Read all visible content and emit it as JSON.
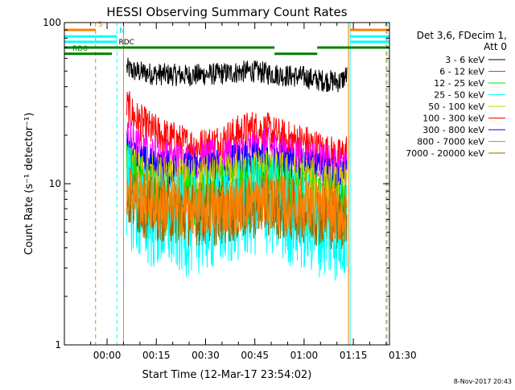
{
  "chart_data": {
    "type": "line",
    "title": "HESSI Observing Summary Count Rates",
    "xlabel": "Start Time (12-Mar-17 23:54:02)",
    "ylabel": "Count Rate (s⁻¹ detector⁻¹)",
    "yscale": "log",
    "ylim": [
      1,
      100
    ],
    "xlim_minutes": [
      -7,
      92
    ],
    "x_ticks": [
      {
        "label": "00:00",
        "minute": 6
      },
      {
        "label": "00:15",
        "minute": 21
      },
      {
        "label": "00:30",
        "minute": 36
      },
      {
        "label": "00:45",
        "minute": 51
      },
      {
        "label": "01:00",
        "minute": 66
      },
      {
        "label": "01:15",
        "minute": 81
      },
      {
        "label": "01:30",
        "minute": 96
      }
    ],
    "y_ticks": [
      {
        "label": "1",
        "value": 1
      },
      {
        "label": "10",
        "value": 10
      },
      {
        "label": "100",
        "value": 100
      }
    ],
    "legend": {
      "placement": "right",
      "header": [
        "Det 3,6, FDecim 1,",
        "Att 0"
      ],
      "entries": [
        {
          "label": "3 - 6 keV",
          "color": "#000000"
        },
        {
          "label": "6 - 12 keV",
          "color": "#ff00ff"
        },
        {
          "label": "12 - 25 keV",
          "color": "#00dd00"
        },
        {
          "label": "25 - 50 keV",
          "color": "#00ffff"
        },
        {
          "label": "50 - 100 keV",
          "color": "#cccc00"
        },
        {
          "label": "100 - 300 keV",
          "color": "#ff0000"
        },
        {
          "label": "300 - 800 keV",
          "color": "#0000ff"
        },
        {
          "label": "800 - 7000 keV",
          "color": "#ff8000"
        },
        {
          "label": "7000 - 20000 keV",
          "color": "#996600"
        }
      ]
    },
    "series": [
      {
        "name": "3 - 6 keV",
        "color": "#000000",
        "noise": 0.035,
        "points": [
          [
            12,
            52
          ],
          [
            14,
            50
          ],
          [
            20,
            48
          ],
          [
            30,
            47
          ],
          [
            40,
            48
          ],
          [
            50,
            50
          ],
          [
            60,
            47
          ],
          [
            66,
            46
          ],
          [
            70,
            44
          ],
          [
            77,
            43
          ],
          [
            79,
            47
          ]
        ]
      },
      {
        "name": "100 - 300 keV",
        "color": "#ff0000",
        "noise": 0.06,
        "points": [
          [
            12,
            30
          ],
          [
            15,
            25
          ],
          [
            20,
            21
          ],
          [
            25,
            19
          ],
          [
            30,
            17.5
          ],
          [
            35,
            17
          ],
          [
            40,
            18
          ],
          [
            45,
            20
          ],
          [
            50,
            22
          ],
          [
            55,
            21
          ],
          [
            60,
            19
          ],
          [
            66,
            18
          ],
          [
            70,
            16.5
          ],
          [
            77,
            14.5
          ],
          [
            79,
            16
          ]
        ]
      },
      {
        "name": "6 - 12 keV",
        "color": "#ff00ff",
        "noise": 0.06,
        "points": [
          [
            12,
            20
          ],
          [
            15,
            17
          ],
          [
            20,
            15
          ],
          [
            30,
            14
          ],
          [
            40,
            14.5
          ],
          [
            48,
            16
          ],
          [
            55,
            17
          ],
          [
            60,
            15.5
          ],
          [
            70,
            14
          ],
          [
            77,
            12.5
          ],
          [
            79,
            13
          ]
        ]
      },
      {
        "name": "300 - 800 keV",
        "color": "#0000ff",
        "noise": 0.06,
        "points": [
          [
            12,
            16
          ],
          [
            15,
            14
          ],
          [
            20,
            12.5
          ],
          [
            30,
            12
          ],
          [
            40,
            12.5
          ],
          [
            48,
            14
          ],
          [
            55,
            14.5
          ],
          [
            60,
            13
          ],
          [
            70,
            12
          ],
          [
            77,
            10.5
          ],
          [
            79,
            11
          ]
        ]
      },
      {
        "name": "50 - 100 keV",
        "color": "#cccc00",
        "noise": 0.08,
        "points": [
          [
            12,
            13
          ],
          [
            15,
            11.5
          ],
          [
            20,
            10.5
          ],
          [
            30,
            10
          ],
          [
            40,
            10.5
          ],
          [
            48,
            11.5
          ],
          [
            55,
            12
          ],
          [
            60,
            11
          ],
          [
            70,
            10
          ],
          [
            77,
            9
          ],
          [
            79,
            9.5
          ]
        ]
      },
      {
        "name": "12 - 25 keV",
        "color": "#00dd00",
        "noise": 0.11,
        "points": [
          [
            12,
            11
          ],
          [
            15,
            9
          ],
          [
            20,
            8
          ],
          [
            30,
            7.5
          ],
          [
            40,
            8
          ],
          [
            48,
            9
          ],
          [
            55,
            9.5
          ],
          [
            60,
            8.5
          ],
          [
            70,
            7.5
          ],
          [
            77,
            6.5
          ],
          [
            79,
            7
          ]
        ]
      },
      {
        "name": "25 - 50 keV",
        "color": "#00ffff",
        "noise": 0.16,
        "points": [
          [
            12,
            9
          ],
          [
            15,
            7
          ],
          [
            20,
            6
          ],
          [
            30,
            5.5
          ],
          [
            40,
            6
          ],
          [
            48,
            7
          ],
          [
            55,
            7.5
          ],
          [
            60,
            6.5
          ],
          [
            70,
            5.5
          ],
          [
            77,
            5
          ],
          [
            79,
            5.5
          ]
        ]
      },
      {
        "name": "7000 - 20000 keV",
        "color": "#996600",
        "noise": 0.1,
        "points": [
          [
            12,
            8.5
          ],
          [
            15,
            7.5
          ],
          [
            20,
            7
          ],
          [
            30,
            6.5
          ],
          [
            40,
            6.5
          ],
          [
            48,
            7
          ],
          [
            55,
            7.5
          ],
          [
            60,
            7
          ],
          [
            70,
            6.5
          ],
          [
            77,
            6
          ],
          [
            79,
            6.5
          ]
        ]
      },
      {
        "name": "800 - 7000 keV",
        "color": "#ff8000",
        "noise": 0.09,
        "points": [
          [
            12,
            10
          ],
          [
            15,
            8.5
          ],
          [
            20,
            7.5
          ],
          [
            30,
            7
          ],
          [
            40,
            7
          ],
          [
            48,
            7.5
          ],
          [
            55,
            8
          ],
          [
            60,
            7.5
          ],
          [
            70,
            7
          ],
          [
            77,
            6.5
          ],
          [
            79,
            6.5
          ]
        ]
      }
    ],
    "vertical_markers": [
      {
        "minute": 2.5,
        "color": "#ff8000",
        "style": "dashed"
      },
      {
        "minute": 9,
        "color": "#00ffff",
        "style": "dashed"
      },
      {
        "minute": 11,
        "color": "#ff8000",
        "style": "solid"
      },
      {
        "minute": 79.5,
        "color": "#ff8000",
        "style": "solid"
      },
      {
        "minute": 80,
        "color": "#00ffff",
        "style": "solid"
      },
      {
        "minute": 91,
        "color": "#ff8000",
        "style": "dashed"
      },
      {
        "minute": 91.3,
        "color": "#00ffff",
        "style": "dashed"
      }
    ],
    "status_bars": [
      {
        "label": "S",
        "color": "#ff8000",
        "value": 90,
        "segments": [
          [
            -7,
            2.5
          ],
          [
            80,
            92
          ]
        ]
      },
      {
        "label": "N",
        "color": "#00ffff",
        "value": 82,
        "segments": [
          [
            -7,
            9
          ],
          [
            80,
            92
          ]
        ]
      },
      {
        "label": "",
        "color": "#00ffff",
        "value": 76,
        "segments": [
          [
            -7,
            9
          ],
          [
            80,
            92
          ]
        ]
      },
      {
        "label": "RDC",
        "color": "#008000",
        "value": 70,
        "segments": [
          [
            11,
            57
          ],
          [
            70,
            92
          ]
        ]
      },
      {
        "label": "",
        "color": "#008000",
        "value": 70,
        "segments": [
          [
            -7,
            11
          ]
        ]
      },
      {
        "label": "RD6",
        "color": "#008000",
        "value": 64,
        "segments": [
          [
            -7,
            7.5
          ]
        ]
      },
      {
        "label": "",
        "color": "#008000",
        "value": 64,
        "segments": [
          [
            57,
            70
          ]
        ]
      }
    ],
    "footer_date": "8-Nov-2017 20:43"
  }
}
